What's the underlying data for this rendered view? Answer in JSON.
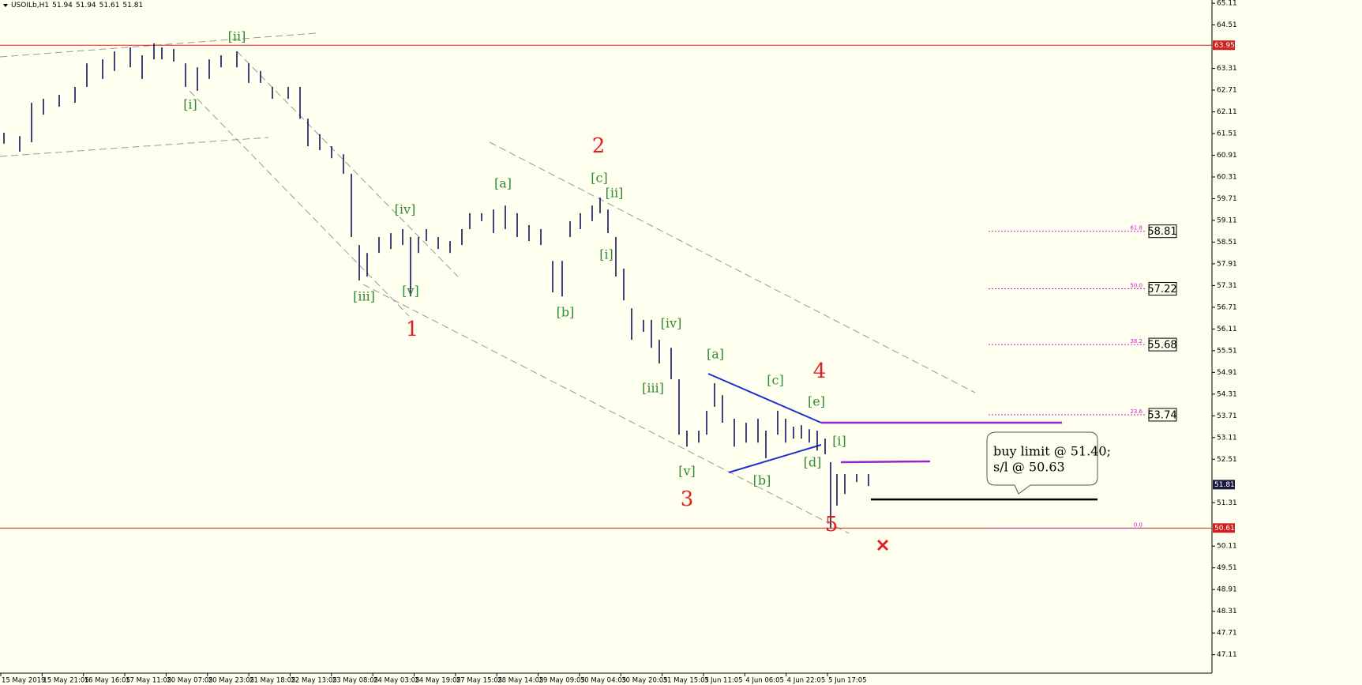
{
  "header": {
    "symbol": "USOILb,H1",
    "ohlc": [
      51.94,
      51.94,
      51.61,
      51.81
    ]
  },
  "chart_data": {
    "type": "hl-bars",
    "color": "#12125a",
    "ylim": [
      46.6,
      65.2
    ],
    "yticks": [
      65.11,
      64.51,
      63.31,
      62.71,
      62.11,
      61.51,
      60.91,
      60.31,
      59.71,
      59.11,
      58.51,
      57.91,
      57.31,
      56.71,
      56.11,
      55.51,
      54.91,
      54.31,
      53.71,
      53.11,
      52.51,
      51.31,
      50.11,
      49.51,
      48.91,
      48.31,
      47.71,
      47.11
    ],
    "x_labels": [
      "15 May 2019",
      "15 May 21:05",
      "16 May 16:05",
      "17 May 11:05",
      "20 May 07:05",
      "20 May 23:05",
      "21 May 18:05",
      "22 May 13:05",
      "23 May 08:05",
      "24 May 03:05",
      "24 May 19:05",
      "27 May 15:05",
      "28 May 14:05",
      "29 May 09:05",
      "30 May 04:05",
      "30 May 20:05",
      "31 May 15:05",
      "3 Jun 11:05",
      "4 Jun 06:05",
      "4 Jun 22:05",
      "5 Jun 17:05"
    ],
    "highs": [
      61.53,
      61.44,
      62.36,
      62.47,
      62.58,
      62.8,
      63.45,
      63.56,
      63.78,
      63.89,
      63.67,
      64.0,
      63.89,
      63.85,
      63.45,
      63.34,
      63.56,
      63.67,
      63.78,
      63.45,
      63.24,
      62.8,
      62.8,
      62.8,
      61.92,
      61.49,
      61.16,
      60.94,
      60.4,
      58.43,
      58.21,
      58.65,
      58.76,
      58.87,
      58.65,
      58.65,
      58.87,
      58.65,
      58.54,
      58.87,
      59.31,
      59.31,
      59.41,
      59.52,
      59.31,
      58.98,
      58.87,
      57.99,
      57.99,
      59.09,
      59.31,
      59.52,
      59.74,
      59.41,
      58.65,
      57.78,
      56.68,
      56.36,
      56.36,
      55.81,
      55.59,
      54.72,
      53.3,
      53.3,
      53.85,
      54.61,
      54.28,
      53.63,
      53.52,
      53.63,
      53.3,
      53.85,
      53.63,
      53.41,
      53.45,
      53.34,
      53.3,
      53.08,
      52.43,
      52.1,
      52.1,
      52.1,
      52.1
    ],
    "lows": [
      61.23,
      61.01,
      61.27,
      62.03,
      62.25,
      62.36,
      62.8,
      63.02,
      63.24,
      63.34,
      63.02,
      63.56,
      63.56,
      63.5,
      62.8,
      62.69,
      63.02,
      63.34,
      63.34,
      62.91,
      62.91,
      62.47,
      62.47,
      61.92,
      61.16,
      61.05,
      60.83,
      60.4,
      58.65,
      57.45,
      57.56,
      58.21,
      58.32,
      58.43,
      57.01,
      58.21,
      58.54,
      58.32,
      58.21,
      58.43,
      58.87,
      59.09,
      58.76,
      58.87,
      58.65,
      58.54,
      58.43,
      57.12,
      57.01,
      58.65,
      58.87,
      59.09,
      59.31,
      58.76,
      57.56,
      56.9,
      55.81,
      56.03,
      55.59,
      55.16,
      54.72,
      53.19,
      52.86,
      52.97,
      53.19,
      53.96,
      53.52,
      52.86,
      52.97,
      52.97,
      52.54,
      53.19,
      52.97,
      53.08,
      53.08,
      52.97,
      52.75,
      52.65,
      50.61,
      51.23,
      51.55,
      51.88,
      51.77
    ],
    "resistance": 63.95,
    "support": 50.61,
    "line_color": "#d02020",
    "fib_levels": [
      {
        "ratio": 61.8,
        "price": 58.81
      },
      {
        "ratio": {
          "value": 50,
          "label": "50.0"
        },
        "price": 57.22
      },
      {
        "ratio": 38.2,
        "price": 55.68
      },
      {
        "ratio": 23.6,
        "price": 53.74
      }
    ],
    "fib_zero": {
      "value": 0,
      "label": "0.0"
    },
    "fib_color": "#cc22cc",
    "buy_limit": 51.4,
    "callout": [
      "buy limit @ 51.40;",
      "s/l @ 50.63"
    ],
    "minor_waves": [
      "[ii]",
      "[i]",
      "[iii]",
      "[iv]",
      "[v]",
      "[a]",
      "[b]",
      "[c]",
      "[ii]",
      "[i]",
      "[iv]",
      "[iii]",
      "[v]",
      "[a]",
      "[b]",
      "[c]",
      "[d]",
      "[e]",
      "[i]"
    ],
    "minor_color": "#2e8b2e",
    "major_waves": [
      "1",
      "2",
      "3",
      "4",
      "5"
    ],
    "major_color": "#e02020"
  }
}
